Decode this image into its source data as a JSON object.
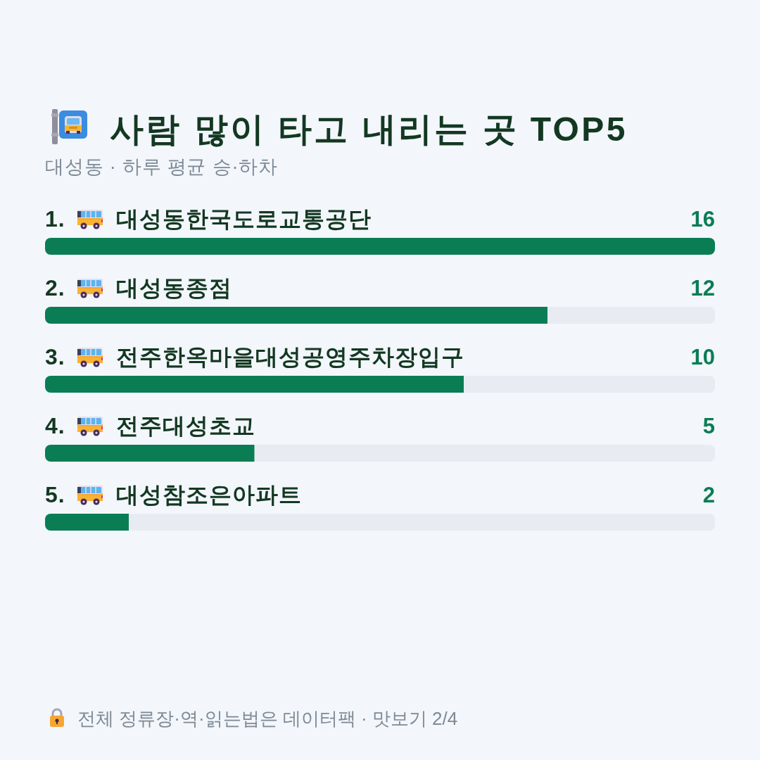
{
  "chart_data": {
    "type": "bar",
    "orientation": "horizontal",
    "title": "사람 많이 타고 내리는 곳 TOP5",
    "subtitle": "대성동 · 하루 평균 승·하차",
    "categories": [
      "1. 대성동한국도로교통공단",
      "2. 대성동종점",
      "3. 전주한옥마을대성공영주차장입구",
      "4. 전주대성초교",
      "5. 대성참조은아파트"
    ],
    "values": [
      16,
      12,
      10,
      5,
      2
    ],
    "color": "#0a7d55",
    "data_labels": true,
    "annotations": [
      "전체 정류장·역·읽는법은 데이터팩 · 맛보기 2/4"
    ]
  }
}
